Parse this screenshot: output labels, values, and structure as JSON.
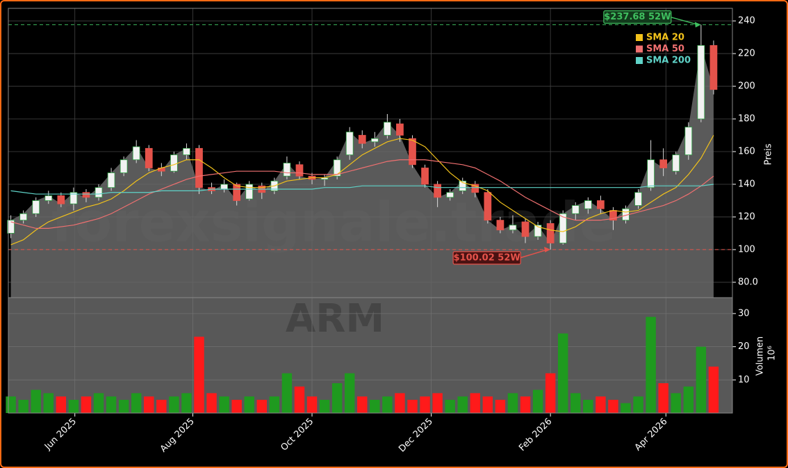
{
  "chart_data": [
    {
      "type": "candlestick",
      "watermark": "forexsignale.trade",
      "ylabel": "Preis",
      "categories": [
        null,
        null,
        null,
        null,
        null,
        null,
        null,
        null,
        null,
        null,
        null,
        null,
        null,
        null,
        null,
        null,
        null,
        null,
        null,
        null,
        null,
        null,
        null,
        null,
        null,
        null,
        null,
        null,
        null,
        null,
        null,
        null,
        null,
        null,
        null,
        null,
        null,
        null,
        null,
        null,
        null,
        null,
        null,
        null,
        null,
        null,
        null,
        null,
        null,
        null,
        null,
        null,
        null,
        null,
        null,
        null,
        null
      ],
      "open": [
        110,
        118,
        122,
        130,
        133,
        128,
        135,
        132,
        138,
        147,
        155,
        162,
        150,
        148,
        158,
        162,
        138,
        137,
        140,
        131,
        139,
        136,
        145,
        152,
        145,
        143,
        145,
        158,
        170,
        166,
        170,
        177,
        168,
        150,
        140,
        132,
        136,
        140,
        135,
        118,
        112,
        117,
        108,
        116,
        104,
        122,
        125,
        130,
        124,
        118,
        127,
        138,
        155,
        148,
        158,
        180,
        225
      ],
      "high": [
        121,
        124,
        132,
        136,
        135,
        138,
        137,
        140,
        150,
        157,
        167,
        164,
        153,
        160,
        165,
        164,
        141,
        143,
        141,
        142,
        141,
        144,
        157,
        154,
        147,
        146,
        157,
        175,
        173,
        172,
        183,
        180,
        170,
        152,
        142,
        137,
        144,
        142,
        137,
        120,
        121,
        119,
        117,
        118,
        124,
        129,
        132,
        133,
        126,
        127,
        137,
        167,
        162,
        160,
        178,
        237.68,
        228
      ],
      "low": [
        107,
        116,
        120,
        128,
        126,
        124,
        129,
        130,
        136,
        145,
        153,
        148,
        145,
        147,
        155,
        134,
        134,
        135,
        127,
        130,
        131,
        134,
        143,
        143,
        140,
        139,
        143,
        155,
        162,
        163,
        168,
        166,
        150,
        138,
        126,
        130,
        134,
        132,
        116,
        110,
        110,
        104,
        106,
        100.02,
        103,
        118,
        122,
        122,
        112,
        116,
        125,
        136,
        145,
        146,
        155,
        178,
        195
      ],
      "close": [
        118,
        122,
        130,
        133,
        128,
        135,
        132,
        138,
        147,
        155,
        163,
        150,
        148,
        158,
        162,
        138,
        136,
        140,
        130,
        140,
        135,
        142,
        153,
        145,
        143,
        144,
        155,
        172,
        165,
        168,
        178,
        170,
        152,
        140,
        132,
        135,
        142,
        135,
        118,
        112,
        115,
        108,
        115,
        104,
        122,
        127,
        130,
        125,
        118,
        125,
        135,
        155,
        150,
        158,
        175,
        225,
        198
      ],
      "up_color": "#2ea043",
      "down_color": "#e5534b",
      "wick_color": "#dddddd",
      "area_color": "#6a6a6a",
      "series": [
        {
          "name": "SMA 20",
          "color": "#f2c21b",
          "values": [
            103,
            106,
            112,
            117,
            120,
            123,
            126,
            128,
            131,
            136,
            142,
            147,
            150,
            152,
            155,
            155,
            150,
            144,
            139,
            138,
            138,
            139,
            142,
            143,
            144,
            144,
            146,
            152,
            158,
            162,
            166,
            168,
            167,
            163,
            155,
            147,
            141,
            139,
            136,
            129,
            124,
            119,
            114,
            112,
            111,
            114,
            119,
            122,
            124,
            123,
            124,
            129,
            134,
            138,
            146,
            156,
            170
          ]
        },
        {
          "name": "SMA 50",
          "color": "#f07070",
          "values": [
            117,
            115,
            113,
            113,
            114,
            115,
            117,
            119,
            122,
            126,
            130,
            134,
            137,
            140,
            143,
            145,
            146,
            147,
            148,
            148,
            148,
            148,
            147,
            147,
            146,
            146,
            146,
            148,
            150,
            152,
            154,
            155,
            155,
            155,
            154,
            153,
            152,
            150,
            146,
            142,
            137,
            132,
            128,
            124,
            120,
            118,
            118,
            118,
            119,
            121,
            123,
            125,
            127,
            130,
            134,
            139,
            145
          ]
        },
        {
          "name": "SMA 200",
          "color": "#5fd3c8",
          "values": [
            136,
            135,
            134,
            134,
            134,
            134,
            134,
            134,
            135,
            135,
            135,
            135,
            136,
            136,
            136,
            136,
            137,
            137,
            137,
            137,
            137,
            137,
            137,
            137,
            137,
            138,
            138,
            138,
            139,
            139,
            139,
            139,
            139,
            139,
            138,
            138,
            138,
            138,
            138,
            138,
            138,
            138,
            138,
            138,
            138,
            138,
            138,
            138,
            138,
            138,
            138,
            139,
            139,
            139,
            139,
            139,
            140
          ]
        }
      ],
      "annotations": [
        {
          "text": "$237.68 52W",
          "value": 237.68,
          "color": "#3fbf5f"
        },
        {
          "text": "$100.02 52W",
          "value": 100.02,
          "color": "#e5534b"
        }
      ],
      "legend": "upper right",
      "grid": true,
      "xlim": [
        -0.2,
        57.5
      ],
      "ylim": [
        70.6,
        247.7
      ],
      "yticks": [
        {
          "value": 80,
          "label": "80.0"
        },
        100,
        120,
        140,
        160,
        180,
        200,
        220,
        240
      ]
    },
    {
      "type": "bar",
      "watermark": "ARM",
      "ylabel": "Volumen",
      "offset_label": "10⁶",
      "values": [
        5,
        4,
        7,
        6,
        5,
        4,
        5,
        6,
        5,
        4,
        6,
        5,
        4,
        5,
        6,
        23,
        6,
        5,
        4,
        5,
        4,
        5,
        12,
        8,
        5,
        4,
        9,
        12,
        5,
        4,
        5,
        6,
        4,
        5,
        6,
        4,
        5,
        6,
        5,
        4,
        6,
        5,
        7,
        12,
        24,
        6,
        4,
        5,
        4,
        3,
        5,
        29,
        9,
        6,
        8,
        20,
        14
      ],
      "up_color": "#1f9a1f",
      "down_color": "#ff1a1a",
      "grid": true,
      "xlim": [
        -0.2,
        57.5
      ],
      "ylim": [
        0,
        34.8
      ],
      "yticks": [
        10,
        20,
        30
      ],
      "xticks": [
        {
          "value": 5.1,
          "label": "Jun 2025"
        },
        {
          "value": 14.5,
          "label": "Aug 2025"
        },
        {
          "value": 24.0,
          "label": "Oct 2025"
        },
        {
          "value": 33.5,
          "label": "Dec 2025"
        },
        {
          "value": 43.0,
          "label": "Feb 2026"
        },
        {
          "value": 52.2,
          "label": "Apr 2026"
        }
      ]
    }
  ]
}
